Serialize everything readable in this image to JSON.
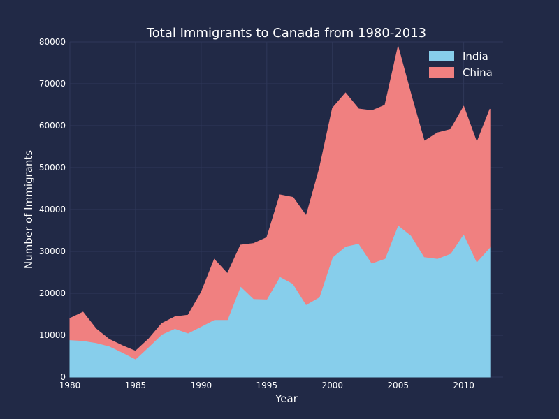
{
  "chart_data": {
    "type": "area",
    "stacked": true,
    "title": "Total Immigrants to Canada from 1980-2013",
    "xlabel": "Year",
    "ylabel": "Number of Immigrants",
    "xlim": [
      1980,
      2013
    ],
    "ylim": [
      0,
      80000
    ],
    "xticks": [
      1980,
      1985,
      1990,
      1995,
      2000,
      2005,
      2010
    ],
    "yticks": [
      0,
      10000,
      20000,
      30000,
      40000,
      50000,
      60000,
      70000,
      80000
    ],
    "grid": true,
    "legend_position": "top-right",
    "x": [
      1980,
      1981,
      1982,
      1983,
      1984,
      1985,
      1986,
      1987,
      1988,
      1989,
      1990,
      1991,
      1992,
      1993,
      1994,
      1995,
      1996,
      1997,
      1998,
      1999,
      2000,
      2001,
      2002,
      2003,
      2004,
      2005,
      2006,
      2007,
      2008,
      2009,
      2010,
      2011,
      2012
    ],
    "series": [
      {
        "name": "India",
        "color": "#87CEEB",
        "values": [
          8900,
          8700,
          8200,
          7400,
          5900,
          4300,
          7200,
          10200,
          11600,
          10500,
          12100,
          13700,
          13700,
          21700,
          18700,
          18600,
          24000,
          22300,
          17300,
          19100,
          28600,
          31200,
          31900,
          27200,
          28300,
          36300,
          33800,
          28700,
          28300,
          29500,
          34200,
          27500,
          31000
        ]
      },
      {
        "name": "China",
        "color": "#F08080",
        "values": [
          5100,
          6800,
          3300,
          1600,
          1600,
          1900,
          1900,
          2600,
          2800,
          4300,
          8100,
          14400,
          11000,
          9800,
          13200,
          14700,
          19500,
          20600,
          21200,
          30600,
          35600,
          36600,
          32100,
          36400,
          36600,
          42600,
          33500,
          27600,
          30000,
          29600,
          30400,
          28500,
          33000
        ]
      }
    ]
  },
  "colors": {
    "background": "#212946",
    "grid": "#2f3859",
    "text": "#ffffff"
  }
}
